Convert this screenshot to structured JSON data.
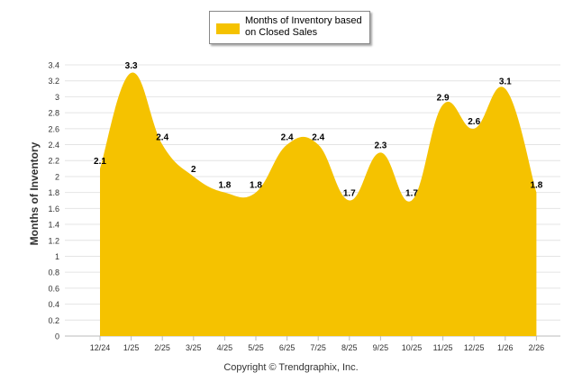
{
  "chart_data": {
    "type": "area",
    "title": "",
    "xlabel": "",
    "ylabel": "Months of Inventory",
    "ylim": [
      0,
      3.4
    ],
    "ytick_step": 0.2,
    "grid": true,
    "legend": "top-center",
    "categories": [
      "12/24",
      "1/25",
      "2/25",
      "3/25",
      "4/25",
      "5/25",
      "6/25",
      "7/25",
      "8/25",
      "9/25",
      "10/25",
      "11/25",
      "12/25",
      "1/26",
      "2/26"
    ],
    "series": [
      {
        "name": "Months of Inventory based on Closed Sales",
        "color": "#F5C200",
        "values": [
          2.1,
          3.3,
          2.4,
          2,
          1.8,
          1.8,
          2.4,
          2.4,
          1.7,
          2.3,
          1.7,
          2.9,
          2.6,
          3.1,
          1.8
        ]
      }
    ]
  },
  "legend": {
    "label": "Months of Inventory based on Closed Sales"
  },
  "footer": {
    "copyright": "Copyright © Trendgraphix, Inc."
  },
  "colors": {
    "area": "#F5C200",
    "grid": "#e4e4e4",
    "axis": "#bbbbbb",
    "text": "#333333"
  }
}
